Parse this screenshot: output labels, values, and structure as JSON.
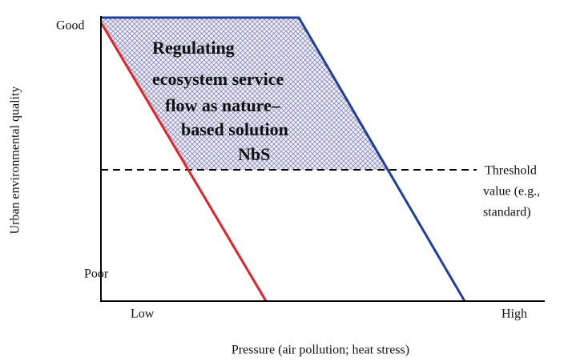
{
  "y_axis": {
    "label": "Urban environmental quality",
    "top": "Good",
    "bottom": "Poor"
  },
  "x_axis": {
    "label": "Pressure (air pollution; heat stress)",
    "left": "Low",
    "right": "High"
  },
  "area_label": [
    "Regulating",
    "ecosystem service",
    "flow as nature–",
    "based solution",
    "NbS"
  ],
  "threshold_label": [
    "Threshold",
    "value (e.g.,",
    "standard)"
  ]
}
